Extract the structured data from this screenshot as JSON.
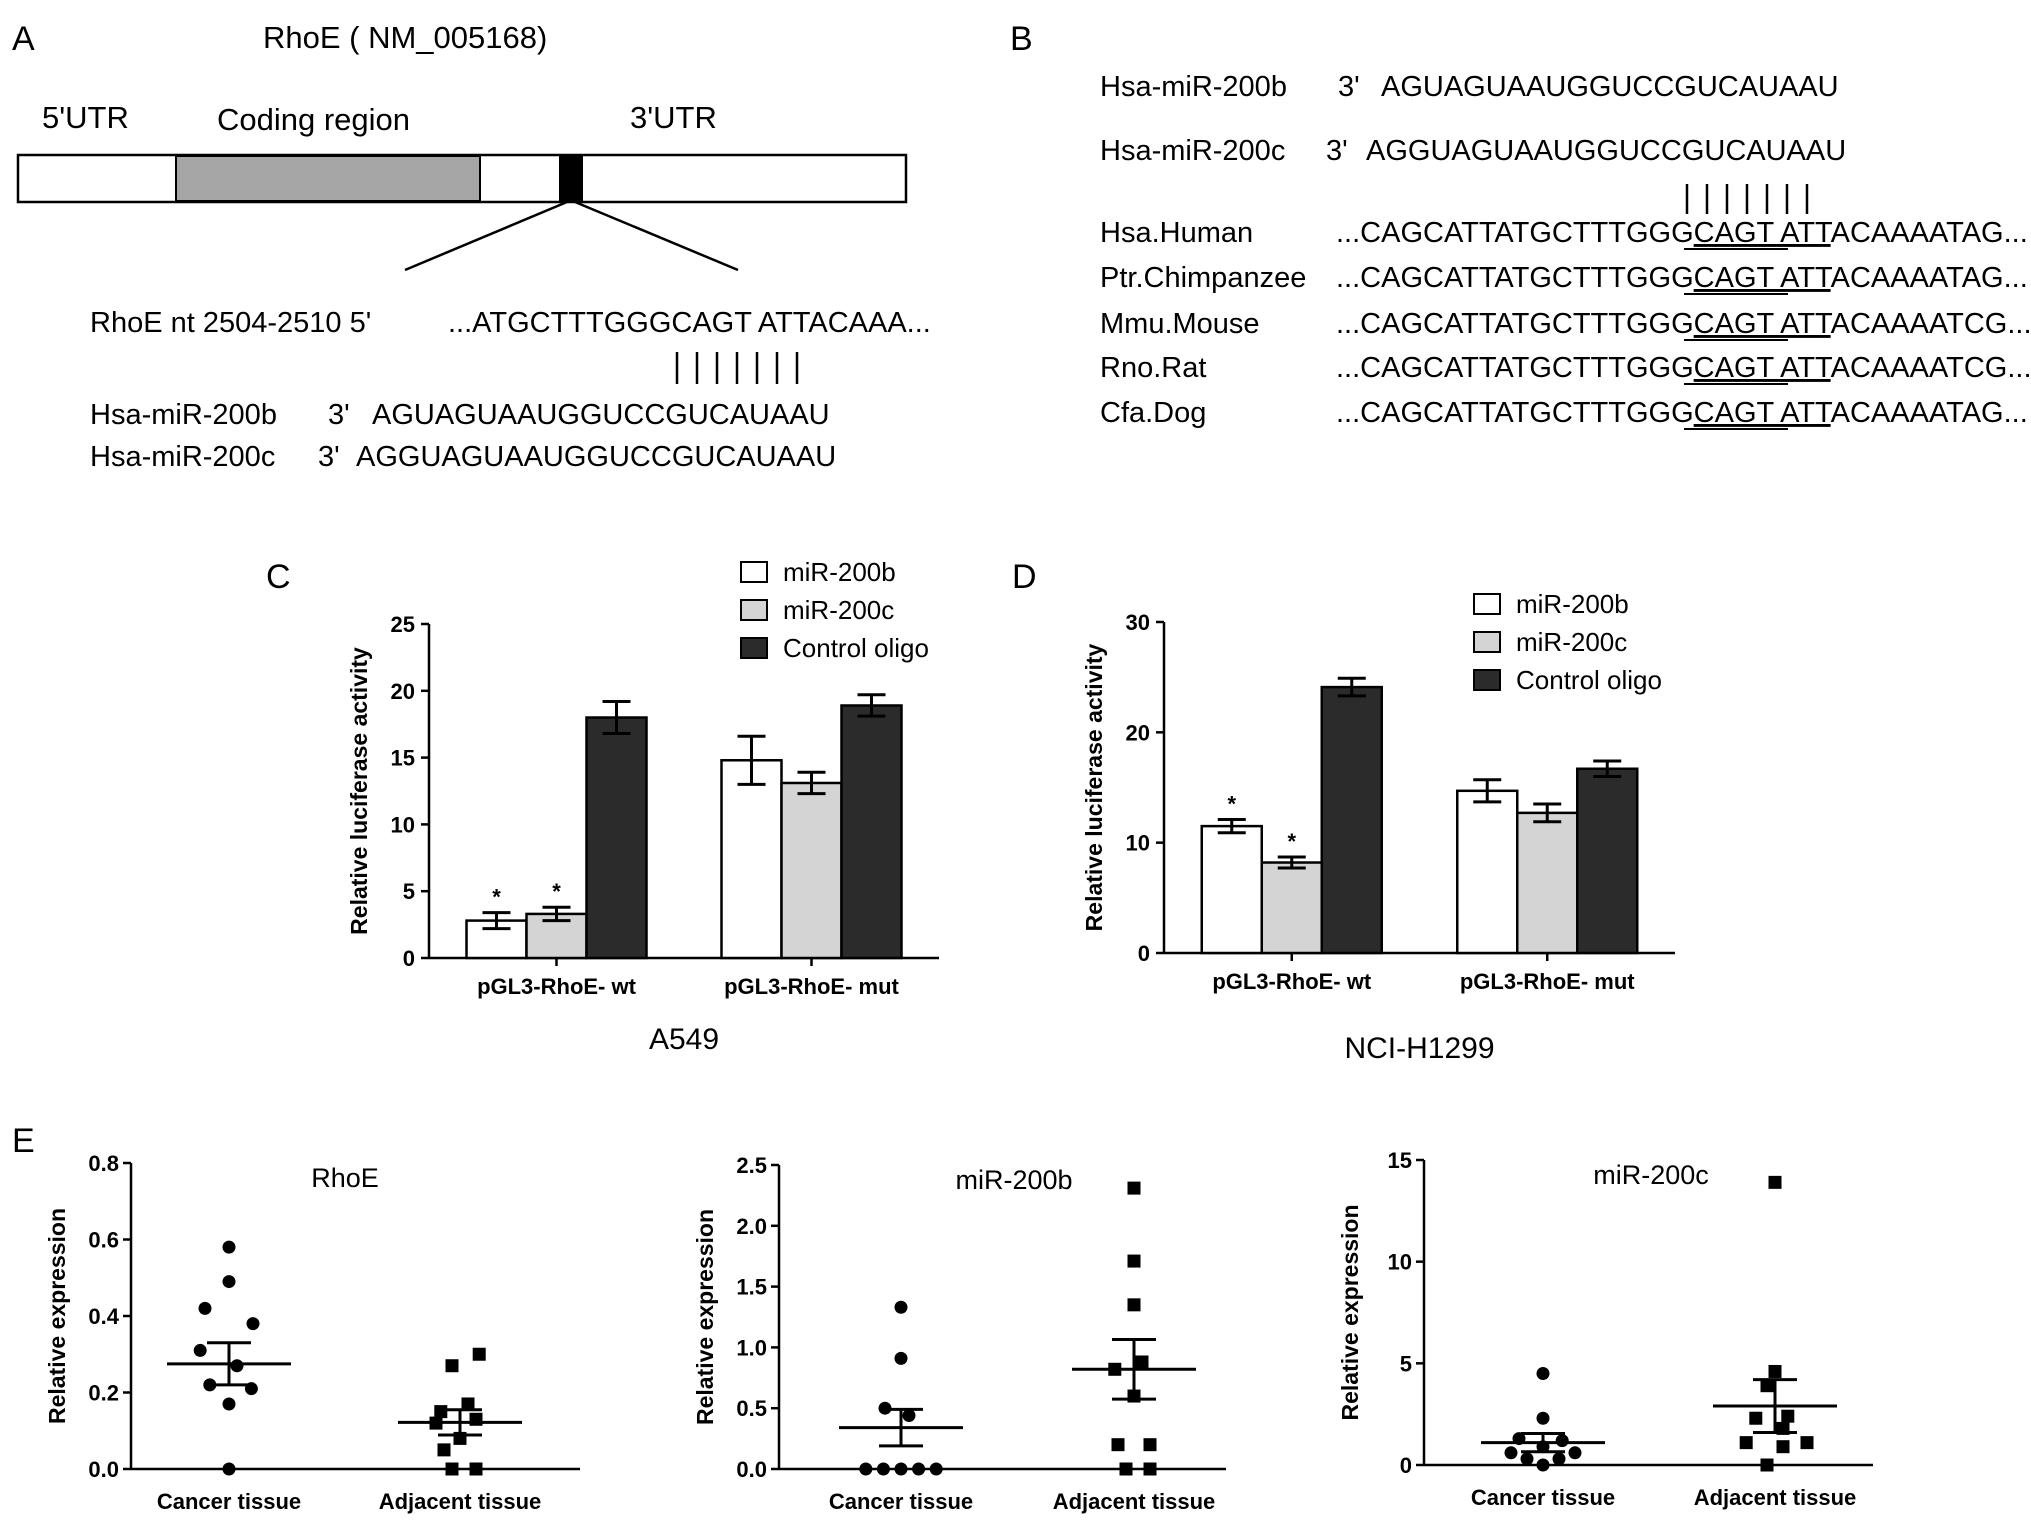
{
  "panels": {
    "A": {
      "letter": "A",
      "title": "RhoE ( NM_005168)",
      "regions": [
        "5'UTR",
        "Coding region",
        "3'UTR"
      ],
      "target_label": "RhoE nt 2504-2510  5'",
      "target_seq": "...ATGCTTTGGGCAGT ATTACAAA...",
      "mirs": [
        {
          "name": "Hsa-miR-200b",
          "end": "3'",
          "seq": "AGUAGUAAUGGUCCGUCAUAAU"
        },
        {
          "name": "Hsa-miR-200c",
          "end": "3'",
          "seq": "AGGUAGUAAUGGUCCGUCAUAAU"
        }
      ]
    },
    "B": {
      "letter": "B",
      "mirs": [
        {
          "name": "Hsa-miR-200b",
          "end": "3'",
          "seq": "AGUAGUAAUGGUCCGUCAUAAU"
        },
        {
          "name": "Hsa-miR-200c",
          "end": "3'",
          "seq": "AGGUAGUAAUGGUCCGUCAUAAU"
        }
      ],
      "species": [
        {
          "name": "Hsa.Human",
          "pre": "...CAGCATTATGCTTTGGG",
          "site": "CAGT ATT",
          "post": "ACAAAATAG..."
        },
        {
          "name": "Ptr.Chimpanzee",
          "pre": "...CAGCATTATGCTTTGGG",
          "site": "CAGT ATT",
          "post": "ACAAAATAG..."
        },
        {
          "name": "Mmu.Mouse",
          "pre": "...CAGCATTATGCTTTGGG",
          "site": "CAGT ATT",
          "post": "ACAAAATCG..."
        },
        {
          "name": "Rno.Rat",
          "pre": "...CAGCATTATGCTTTGGG",
          "site": "CAGT ATT",
          "post": "ACAAAATCG..."
        },
        {
          "name": "Cfa.Dog",
          "pre": "...CAGCATTATGCTTTGGG",
          "site": "CAGT ATT",
          "post": "ACAAAATAG..."
        }
      ]
    },
    "C_letter": "C",
    "D_letter": "D",
    "E_letter": "E"
  },
  "colors": {
    "coding_region": "#a6a6a6",
    "bar_mir200b": "#ffffff",
    "bar_mir200c": "#d4d4d4",
    "bar_control": "#2b2b2b"
  },
  "chart_data": [
    {
      "id": "C",
      "type": "bar",
      "caption": "A549",
      "ylabel": "Relative luciferase activity",
      "ylim": [
        0,
        25
      ],
      "yticks": [
        0,
        5,
        10,
        15,
        20,
        25
      ],
      "categories": [
        "pGL3-RhoE- wt",
        "pGL3-RhoE- mut"
      ],
      "series": [
        {
          "name": "miR-200b",
          "values": [
            2.8,
            14.8
          ],
          "errors": [
            0.6,
            1.8
          ],
          "star": [
            true,
            false
          ]
        },
        {
          "name": "miR-200c",
          "values": [
            3.3,
            13.1
          ],
          "errors": [
            0.5,
            0.8
          ],
          "star": [
            true,
            false
          ]
        },
        {
          "name": "Control oligo",
          "values": [
            18.0,
            18.9
          ],
          "errors": [
            1.2,
            0.8
          ],
          "star": [
            false,
            false
          ]
        }
      ],
      "legend_position": "top-right"
    },
    {
      "id": "D",
      "type": "bar",
      "caption": "NCI-H1299",
      "ylabel": "Relative luciferase activity",
      "ylim": [
        0,
        30
      ],
      "yticks": [
        0,
        10,
        20,
        30
      ],
      "categories": [
        "pGL3-RhoE- wt",
        "pGL3-RhoE- mut"
      ],
      "series": [
        {
          "name": "miR-200b",
          "values": [
            11.5,
            14.7
          ],
          "errors": [
            0.6,
            1.0
          ],
          "star": [
            true,
            false
          ]
        },
        {
          "name": "miR-200c",
          "values": [
            8.2,
            12.7
          ],
          "errors": [
            0.5,
            0.8
          ],
          "star": [
            true,
            false
          ]
        },
        {
          "name": "Control oligo",
          "values": [
            24.1,
            16.7
          ],
          "errors": [
            0.8,
            0.7
          ],
          "star": [
            false,
            false
          ]
        }
      ],
      "legend_position": "top-right"
    },
    {
      "id": "E1",
      "type": "scatter",
      "title": "RhoE",
      "ylabel": "Relative expression",
      "ylim": [
        0,
        0.8
      ],
      "yticks": [
        "0.0",
        "0.2",
        "0.4",
        "0.6",
        "0.8"
      ],
      "categories": [
        "Cancer tissue",
        "Adjacent tissue"
      ],
      "groups": [
        {
          "name": "Cancer tissue",
          "marker": "circle",
          "mean": 0.275,
          "sem": 0.055,
          "points": [
            [
              0.0,
              0.58
            ],
            [
              0.0,
              0.49
            ],
            [
              -0.15,
              0.42
            ],
            [
              0.15,
              0.38
            ],
            [
              -0.18,
              0.31
            ],
            [
              0.05,
              0.27
            ],
            [
              -0.12,
              0.22
            ],
            [
              0.14,
              0.21
            ],
            [
              0.0,
              0.17
            ],
            [
              0.0,
              0.0
            ]
          ]
        },
        {
          "name": "Adjacent tissue",
          "marker": "square",
          "mean": 0.122,
          "sem": 0.033,
          "points": [
            [
              0.12,
              0.3
            ],
            [
              -0.05,
              0.27
            ],
            [
              0.05,
              0.17
            ],
            [
              -0.12,
              0.15
            ],
            [
              0.1,
              0.13
            ],
            [
              -0.15,
              0.12
            ],
            [
              0.0,
              0.08
            ],
            [
              -0.1,
              0.05
            ],
            [
              0.1,
              0.0
            ],
            [
              -0.05,
              0.0
            ]
          ]
        }
      ]
    },
    {
      "id": "E2",
      "type": "scatter",
      "title": "miR-200b",
      "ylabel": "Relative expression",
      "ylim": [
        0,
        2.5
      ],
      "yticks": [
        "0.0",
        "0.5",
        "1.0",
        "1.5",
        "2.0",
        "2.5"
      ],
      "categories": [
        "Cancer tissue",
        "Adjacent tissue"
      ],
      "groups": [
        {
          "name": "Cancer tissue",
          "marker": "circle",
          "mean": 0.34,
          "sem": 0.15,
          "points": [
            [
              0.0,
              1.33
            ],
            [
              0.0,
              0.91
            ],
            [
              -0.1,
              0.5
            ],
            [
              0.05,
              0.44
            ],
            [
              -0.22,
              0.0
            ],
            [
              -0.11,
              0.0
            ],
            [
              0.0,
              0.0
            ],
            [
              0.11,
              0.0
            ],
            [
              0.22,
              0.0
            ]
          ]
        },
        {
          "name": "Adjacent tissue",
          "marker": "square",
          "mean": 0.82,
          "sem": 0.245,
          "points": [
            [
              0.0,
              2.31
            ],
            [
              0.0,
              1.71
            ],
            [
              0.0,
              1.35
            ],
            [
              0.05,
              0.88
            ],
            [
              -0.12,
              0.82
            ],
            [
              0.0,
              0.6
            ],
            [
              -0.1,
              0.2
            ],
            [
              0.1,
              0.2
            ],
            [
              -0.05,
              0.0
            ],
            [
              0.1,
              0.0
            ]
          ]
        }
      ]
    },
    {
      "id": "E3",
      "type": "scatter",
      "title": "miR-200c",
      "ylabel": "Relative expression",
      "ylim": [
        0,
        15
      ],
      "yticks": [
        "0",
        "5",
        "10",
        "15"
      ],
      "categories": [
        "Cancer tissue",
        "Adjacent tissue"
      ],
      "groups": [
        {
          "name": "Cancer tissue",
          "marker": "circle",
          "mean": 1.1,
          "sem": 0.45,
          "points": [
            [
              0.0,
              4.5
            ],
            [
              0.0,
              2.3
            ],
            [
              -0.15,
              1.3
            ],
            [
              0.12,
              1.2
            ],
            [
              0.0,
              0.9
            ],
            [
              -0.2,
              0.6
            ],
            [
              0.2,
              0.6
            ],
            [
              -0.1,
              0.3
            ],
            [
              0.1,
              0.3
            ],
            [
              0.0,
              0.0
            ]
          ]
        },
        {
          "name": "Adjacent tissue",
          "marker": "square",
          "mean": 2.9,
          "sem": 1.3,
          "points": [
            [
              0.0,
              13.9
            ],
            [
              0.0,
              4.6
            ],
            [
              -0.05,
              3.9
            ],
            [
              0.08,
              2.4
            ],
            [
              -0.12,
              2.3
            ],
            [
              0.05,
              1.8
            ],
            [
              -0.18,
              1.1
            ],
            [
              0.2,
              1.1
            ],
            [
              0.05,
              0.9
            ],
            [
              -0.05,
              0.0
            ]
          ]
        }
      ]
    }
  ]
}
